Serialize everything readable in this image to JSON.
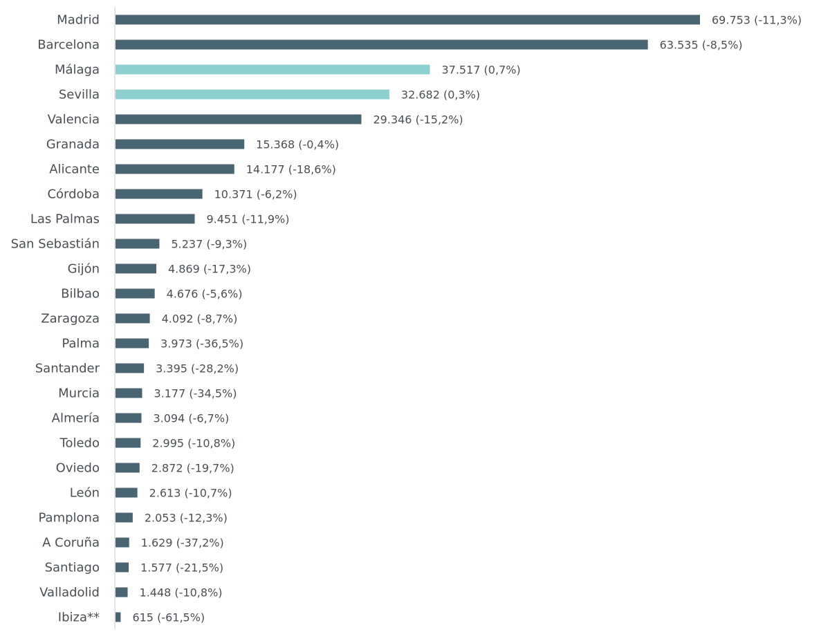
{
  "chart_data": {
    "type": "bar",
    "orientation": "horizontal",
    "title": "",
    "xlabel": "",
    "ylabel": "",
    "grid": false,
    "legend": "none",
    "xlim": [
      0,
      70000
    ],
    "colors": {
      "default": "#4a6572",
      "highlight": "#8ecfcf"
    },
    "bars": [
      {
        "category": "Madrid",
        "value": 69753,
        "label": "69.753 (-11,3%)",
        "highlight": false
      },
      {
        "category": "Barcelona",
        "value": 63535,
        "label": "63.535 (-8,5%)",
        "highlight": false
      },
      {
        "category": "Málaga",
        "value": 37517,
        "label": "37.517 (0,7%)",
        "highlight": true
      },
      {
        "category": "Sevilla",
        "value": 32682,
        "label": "32.682 (0,3%)",
        "highlight": true
      },
      {
        "category": "Valencia",
        "value": 29346,
        "label": "29.346 (-15,2%)",
        "highlight": false
      },
      {
        "category": "Granada",
        "value": 15368,
        "label": "15.368 (-0,4%)",
        "highlight": false
      },
      {
        "category": "Alicante",
        "value": 14177,
        "label": "14.177 (-18,6%)",
        "highlight": false
      },
      {
        "category": "Córdoba",
        "value": 10371,
        "label": "10.371 (-6,2%)",
        "highlight": false
      },
      {
        "category": "Las Palmas",
        "value": 9451,
        "label": "9.451 (-11,9%)",
        "highlight": false
      },
      {
        "category": "San Sebastián",
        "value": 5237,
        "label": "5.237 (-9,3%)",
        "highlight": false
      },
      {
        "category": "Gijón",
        "value": 4869,
        "label": "4.869 (-17,3%)",
        "highlight": false
      },
      {
        "category": "Bilbao",
        "value": 4676,
        "label": "4.676 (-5,6%)",
        "highlight": false
      },
      {
        "category": "Zaragoza",
        "value": 4092,
        "label": "4.092 (-8,7%)",
        "highlight": false
      },
      {
        "category": "Palma",
        "value": 3973,
        "label": "3.973 (-36,5%)",
        "highlight": false
      },
      {
        "category": "Santander",
        "value": 3395,
        "label": "3.395 (-28,2%)",
        "highlight": false
      },
      {
        "category": "Murcia",
        "value": 3177,
        "label": "3.177 (-34,5%)",
        "highlight": false
      },
      {
        "category": "Almería",
        "value": 3094,
        "label": "3.094 (-6,7%)",
        "highlight": false
      },
      {
        "category": "Toledo",
        "value": 2995,
        "label": "2.995 (-10,8%)",
        "highlight": false
      },
      {
        "category": "Oviedo",
        "value": 2872,
        "label": "2.872 (-19,7%)",
        "highlight": false
      },
      {
        "category": "León",
        "value": 2613,
        "label": "2.613 (-10,7%)",
        "highlight": false
      },
      {
        "category": "Pamplona",
        "value": 2053,
        "label": "2.053 (-12,3%)",
        "highlight": false
      },
      {
        "category": "A Coruña",
        "value": 1629,
        "label": "1.629 (-37,2%)",
        "highlight": false
      },
      {
        "category": "Santiago",
        "value": 1577,
        "label": "1.577 (-21,5%)",
        "highlight": false
      },
      {
        "category": "Valladolid",
        "value": 1448,
        "label": "1.448 (-10,8%)",
        "highlight": false
      },
      {
        "category": "Ibiza**",
        "value": 615,
        "label": "615 (-61,5%)",
        "highlight": false
      }
    ]
  }
}
